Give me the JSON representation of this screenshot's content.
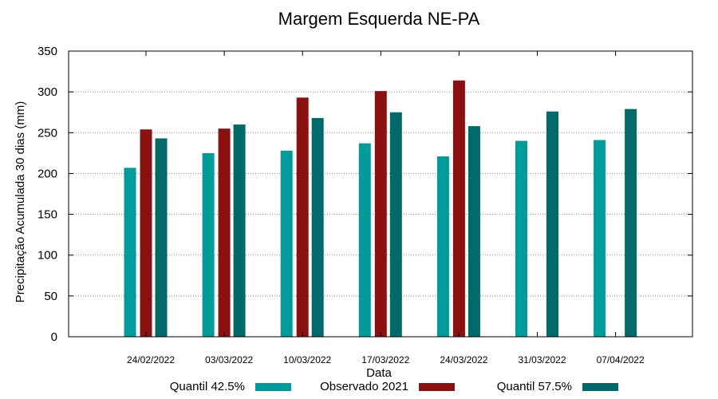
{
  "chart_data": {
    "type": "bar",
    "title": "Margem Esquerda NE-PA",
    "xlabel": "Data",
    "ylabel": "Precipitação Acumulada 30 dias (mm)",
    "ylim": [
      0,
      350
    ],
    "yticks": [
      0,
      50,
      100,
      150,
      200,
      250,
      300,
      350
    ],
    "grid": true,
    "legend_position": "bottom",
    "categories": [
      "24/02/2022",
      "03/03/2022",
      "10/03/2022",
      "17/03/2022",
      "24/03/2022",
      "31/03/2022",
      "07/04/2022"
    ],
    "series": [
      {
        "name": "Quantil 42.5%",
        "color": "#009b9b",
        "values": [
          207,
          225,
          228,
          237,
          221,
          240,
          241
        ]
      },
      {
        "name": "Observado 2021",
        "color": "#8b1010",
        "values": [
          254,
          255,
          293,
          301,
          314,
          null,
          null
        ]
      },
      {
        "name": "Quantil 57.5%",
        "color": "#006a6a",
        "values": [
          243,
          260,
          268,
          275,
          258,
          276,
          279
        ]
      }
    ]
  }
}
